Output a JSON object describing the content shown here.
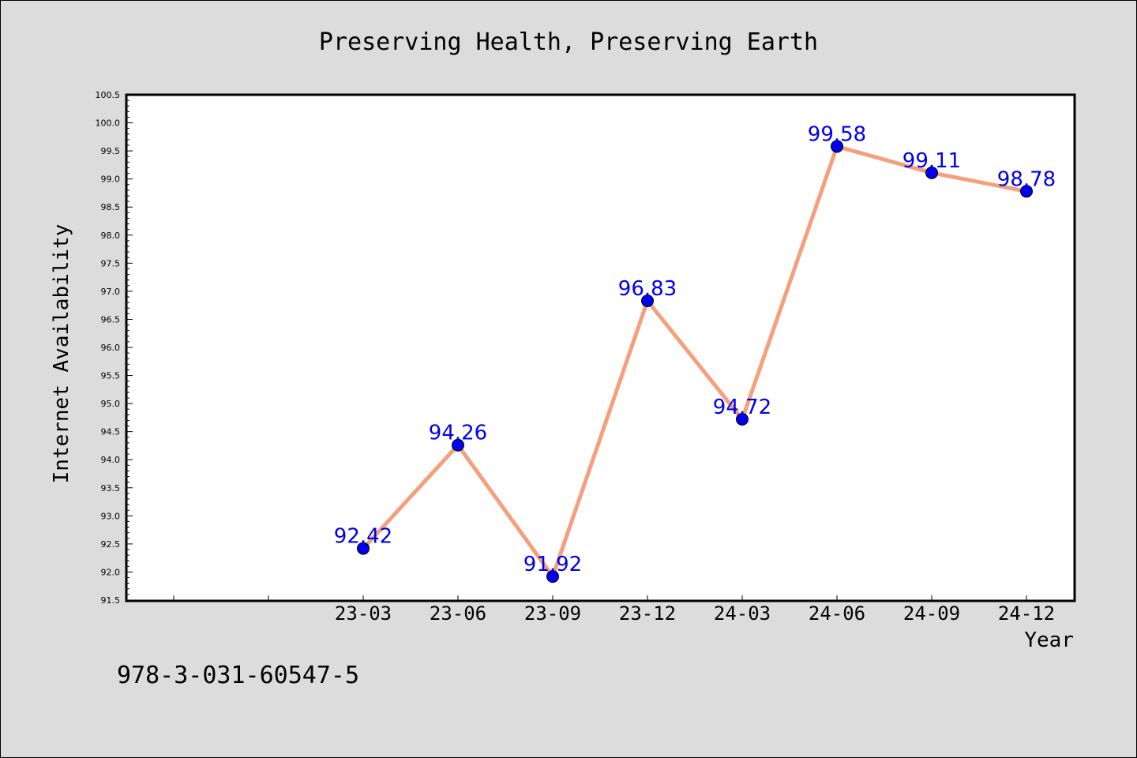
{
  "chart_data": {
    "type": "line",
    "title": "Preserving Health, Preserving Earth",
    "xlabel": "Year",
    "ylabel": "Internet Availability",
    "x_ticks": [
      "23-03",
      "23-06",
      "23-09",
      "23-12",
      "24-03",
      "24-06",
      "24-09",
      "24-12"
    ],
    "categories": [
      "23-03",
      "23-06",
      "23-09",
      "23-12",
      "24-03",
      "24-06",
      "24-09",
      "24-12"
    ],
    "values": [
      92.42,
      94.26,
      91.92,
      96.83,
      94.72,
      99.58,
      99.11,
      98.78
    ],
    "data_labels": [
      "92.42",
      "94.26",
      "91.92",
      "96.83",
      "94.72",
      "99.58",
      "99.11",
      "98.78"
    ],
    "ylim": [
      91.5,
      100.5
    ],
    "y_ticks": [
      "91.5",
      "92.0",
      "92.5",
      "93.0",
      "93.5",
      "94.0",
      "94.5",
      "95.0",
      "95.5",
      "96.0",
      "96.5",
      "97.0",
      "97.5",
      "98.0",
      "98.5",
      "99.0",
      "99.5",
      "100.0",
      "100.5"
    ],
    "grid": false,
    "line_color": "#f4a07c",
    "marker_color": "#0000ee",
    "label_color": "#0000ee"
  },
  "footer_text": "978-3-031-60547-5"
}
